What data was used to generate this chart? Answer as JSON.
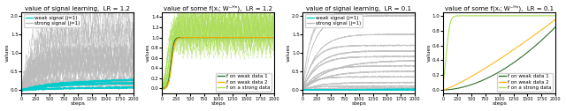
{
  "titles": [
    "value of signal learning,  LR = 1.2",
    "value of some f(xᵢ; W⁻ᴴⁿ),  LR = 1.2",
    "value of signal learning,  LR = 0.1",
    "value of some f(xᵢ; W⁻ᴴⁿ),  LR = 0.1"
  ],
  "xlabel": "steps",
  "ylabel": "values",
  "n_steps": 2001,
  "weak_color": "#00CCCC",
  "strong_color_light": "#BBBBBB",
  "fweak1_color": "#2d6e2d",
  "fweak2_color": "#FFB300",
  "fstrong_color": "#AADD55",
  "legend1_labels": [
    "weak signal (j=1)",
    "strong signal (j=1)"
  ],
  "legend2_labels": [
    "f on weak data 1",
    "f on weak data 2",
    "f on a strong data"
  ]
}
